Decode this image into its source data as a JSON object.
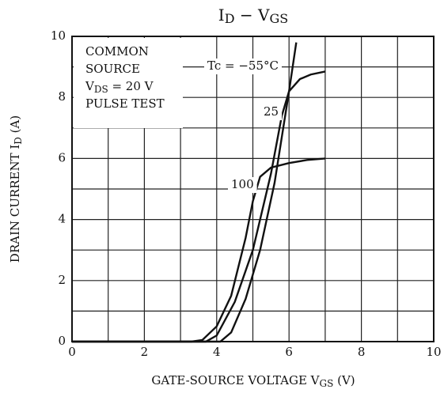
{
  "chart_data": {
    "type": "line",
    "title": [
      {
        "text": "I"
      },
      {
        "text": "D",
        "sub": true
      },
      {
        "text": " − V"
      },
      {
        "text": "GS",
        "sub": true
      }
    ],
    "x_label": [
      {
        "text": "GATE-SOURCE VOLTAGE  V"
      },
      {
        "text": "GS",
        "sub": true
      },
      {
        "text": "  (V)"
      }
    ],
    "y_label": [
      {
        "text": "DRAIN CURRENT  I"
      },
      {
        "text": "D",
        "sub": true
      },
      {
        "text": "  (A)"
      }
    ],
    "conditions": [
      [
        {
          "text": "COMMON"
        }
      ],
      [
        {
          "text": "SOURCE"
        }
      ],
      [
        {
          "text": "V"
        },
        {
          "text": "DS",
          "sub": true
        },
        {
          "text": " = 20 V"
        }
      ],
      [
        {
          "text": "PULSE TEST"
        }
      ]
    ],
    "xlim": [
      0,
      10
    ],
    "ylim": [
      0,
      10
    ],
    "xticks": [
      0,
      2,
      4,
      6,
      8,
      10
    ],
    "yticks": [
      0,
      2,
      4,
      6,
      8,
      10
    ],
    "xminorticks": [
      1,
      3,
      5,
      7,
      9
    ],
    "yminorticks": [
      1,
      3,
      5,
      7,
      9
    ],
    "grid": true,
    "series": [
      {
        "name": "Tc = −55°C",
        "color": "#111",
        "x": [
          0,
          4.1,
          4.4,
          4.8,
          5.2,
          5.6,
          6.0,
          6.2
        ],
        "values": [
          0,
          0,
          0.3,
          1.4,
          3.0,
          5.2,
          8.2,
          9.8
        ]
      },
      {
        "name": "25",
        "color": "#111",
        "x": [
          0,
          3.7,
          4.0,
          4.5,
          5.0,
          5.5,
          5.8,
          6.0,
          6.3,
          6.6,
          7.0
        ],
        "values": [
          0,
          0,
          0.2,
          1.3,
          3.0,
          5.5,
          7.4,
          8.2,
          8.6,
          8.75,
          8.85
        ]
      },
      {
        "name": "100",
        "color": "#111",
        "x": [
          0,
          3.3,
          3.6,
          4.0,
          4.4,
          4.8,
          5.0,
          5.2,
          5.5,
          6.0,
          6.5,
          7.0
        ],
        "values": [
          0,
          0,
          0.05,
          0.5,
          1.5,
          3.4,
          4.6,
          5.4,
          5.7,
          5.85,
          5.95,
          6.0
        ]
      }
    ]
  }
}
